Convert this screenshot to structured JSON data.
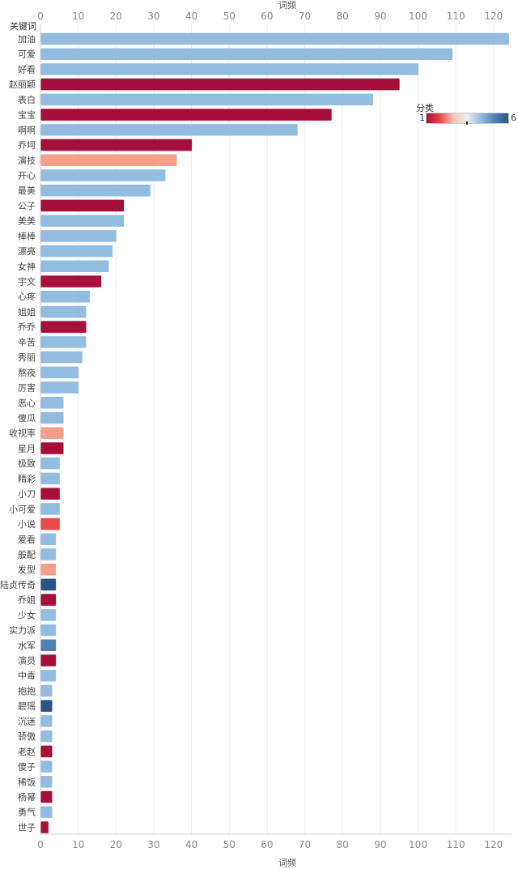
{
  "chart_data": {
    "type": "bar",
    "orientation": "horizontal",
    "row_header": "关键词",
    "xlabel": "词频",
    "xlim": [
      0,
      123
    ],
    "xticks": [
      0,
      10,
      20,
      30,
      40,
      50,
      60,
      70,
      80,
      90,
      100,
      110,
      120
    ],
    "grid": true,
    "color_legend": {
      "title": "分类",
      "min": 1,
      "max": 6,
      "placement": "top-right",
      "colors": [
        "#a50f3a",
        "#e8494a",
        "#f4a08b",
        "#92bde1",
        "#4f81b3",
        "#2b5486"
      ]
    },
    "categories": [
      "加油",
      "可爱",
      "好看",
      "赵丽颖",
      "表白",
      "宝宝",
      "啊啊",
      "乔坷",
      "演技",
      "开心",
      "最美",
      "公子",
      "美美",
      "棒棒",
      "漂亮",
      "女神",
      "宇文",
      "心疼",
      "姐姐",
      "乔乔",
      "辛苦",
      "秀丽",
      "熬夜",
      "厉害",
      "恶心",
      "傻瓜",
      "收视率",
      "星月",
      "极致",
      "精彩",
      "小刀",
      "小可爱",
      "小说",
      "爱看",
      "般配",
      "发型",
      "陆贞传奇",
      "乔姐",
      "少女",
      "实力派",
      "水军",
      "演员",
      "中毒",
      "抱抱",
      "碧瑶",
      "沉迷",
      "骄傲",
      "老赵",
      "傻子",
      "稀饭",
      "杨幂",
      "勇气",
      "世子"
    ],
    "values": [
      124,
      109,
      100,
      95,
      88,
      77,
      68,
      40,
      36,
      33,
      29,
      22,
      22,
      20,
      19,
      18,
      16,
      13,
      12,
      12,
      12,
      11,
      10,
      10,
      6,
      6,
      6,
      6,
      5,
      5,
      5,
      5,
      5,
      4,
      4,
      4,
      4,
      4,
      4,
      4,
      4,
      4,
      4,
      3,
      3,
      3,
      3,
      3,
      3,
      3,
      3,
      3,
      2
    ],
    "colors": [
      "#92bde1",
      "#92bde1",
      "#92bde1",
      "#a50f3a",
      "#92bde1",
      "#a50f3a",
      "#92bde1",
      "#a50f3a",
      "#f4a08b",
      "#92bde1",
      "#92bde1",
      "#a50f3a",
      "#92bde1",
      "#92bde1",
      "#92bde1",
      "#92bde1",
      "#a50f3a",
      "#92bde1",
      "#92bde1",
      "#a50f3a",
      "#92bde1",
      "#92bde1",
      "#92bde1",
      "#92bde1",
      "#92bde1",
      "#92bde1",
      "#f4a08b",
      "#a50f3a",
      "#92bde1",
      "#92bde1",
      "#a50f3a",
      "#92bde1",
      "#e8494a",
      "#92bde1",
      "#92bde1",
      "#f4a08b",
      "#2b5486",
      "#a50f3a",
      "#92bde1",
      "#92bde1",
      "#4f81b3",
      "#a50f3a",
      "#92bde1",
      "#92bde1",
      "#2b5486",
      "#92bde1",
      "#92bde1",
      "#a50f3a",
      "#92bde1",
      "#92bde1",
      "#a50f3a",
      "#92bde1",
      "#a50f3a"
    ]
  }
}
